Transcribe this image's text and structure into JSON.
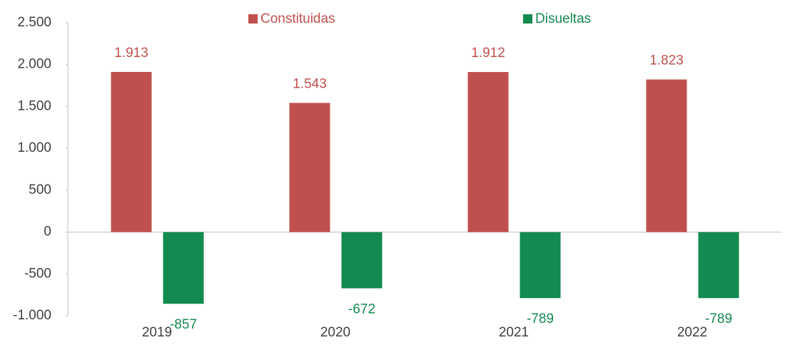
{
  "chart_data": {
    "type": "bar",
    "categories": [
      "2019",
      "2020",
      "2021",
      "2022"
    ],
    "series": [
      {
        "name": "Constituidas",
        "color": "#c0504d",
        "values": [
          1913,
          1543,
          1912,
          1823
        ],
        "value_labels": [
          "1.913",
          "1.543",
          "1.912",
          "1.823"
        ]
      },
      {
        "name": "Disueltas",
        "color": "#138a4f",
        "values": [
          -857,
          -672,
          -789,
          -789
        ]
      }
    ],
    "ylim": [
      -1000,
      2500
    ],
    "yticks": [
      {
        "value": 2500,
        "label": "2.500"
      },
      {
        "value": 2000,
        "label": "2.000"
      },
      {
        "value": 1500,
        "label": "1.500"
      },
      {
        "value": 1000,
        "label": "1.000"
      },
      500,
      0,
      -500,
      {
        "value": -1000,
        "label": "-1.000"
      }
    ],
    "legend": "top"
  }
}
